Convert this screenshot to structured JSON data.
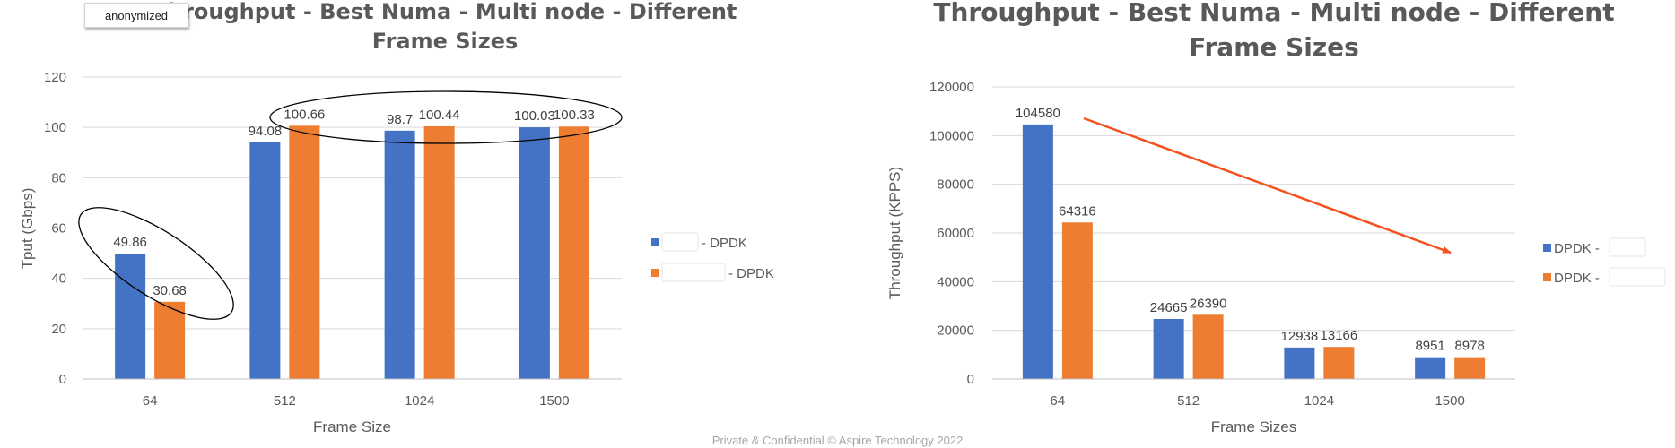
{
  "badge": "anonymized",
  "footer": "Private & Confidential © Aspire Technology 2022",
  "colors": {
    "series1": "#4472C4",
    "series2": "#ED7D31",
    "grid": "#d9d9d9",
    "arrow": "#F4511E",
    "ellipse": "#000000"
  },
  "chart_data": [
    {
      "type": "bar",
      "title": "Throughput - Best Numa - Multi node - Different Frame Sizes",
      "xlabel": "Frame Size",
      "ylabel": "Tput (Gbps)",
      "categories": [
        "64",
        "512",
        "1024",
        "1500"
      ],
      "ylim": [
        0,
        120
      ],
      "yticks": [
        0,
        20,
        40,
        60,
        80,
        100,
        120
      ],
      "grid": true,
      "legend_position": "right",
      "series": [
        {
          "name": "- DPDK",
          "values": [
            49.86,
            94.08,
            98.7,
            100.03
          ],
          "labels": [
            "49.86",
            "94.08",
            "98.7",
            "100.03"
          ]
        },
        {
          "name": "- DPDK",
          "values": [
            30.68,
            100.66,
            100.44,
            100.33
          ],
          "labels": [
            "30.68",
            "100.66",
            "100.44",
            "100.33"
          ]
        }
      ],
      "annotations": [
        "ellipse around 64-byte bars",
        "ellipse around 512-1500 top values"
      ]
    },
    {
      "type": "bar",
      "title": "Throughput - Best Numa - Multi node - Different Frame Sizes",
      "xlabel": "Frame Sizes",
      "ylabel": "Throughput (KPPS)",
      "categories": [
        "64",
        "512",
        "1024",
        "1500"
      ],
      "ylim": [
        0,
        120000
      ],
      "yticks": [
        0,
        20000,
        40000,
        60000,
        80000,
        100000,
        120000
      ],
      "grid": true,
      "legend_position": "right",
      "series": [
        {
          "name": "DPDK -",
          "values": [
            104580,
            24665,
            12938,
            8951
          ],
          "labels": [
            "104580",
            "24665",
            "12938",
            "8951"
          ]
        },
        {
          "name": "DPDK -",
          "values": [
            64316,
            26390,
            13166,
            8978
          ],
          "labels": [
            "64316",
            "26390",
            "13166",
            "8978"
          ]
        }
      ],
      "annotations": [
        "downward trend arrow"
      ]
    }
  ]
}
